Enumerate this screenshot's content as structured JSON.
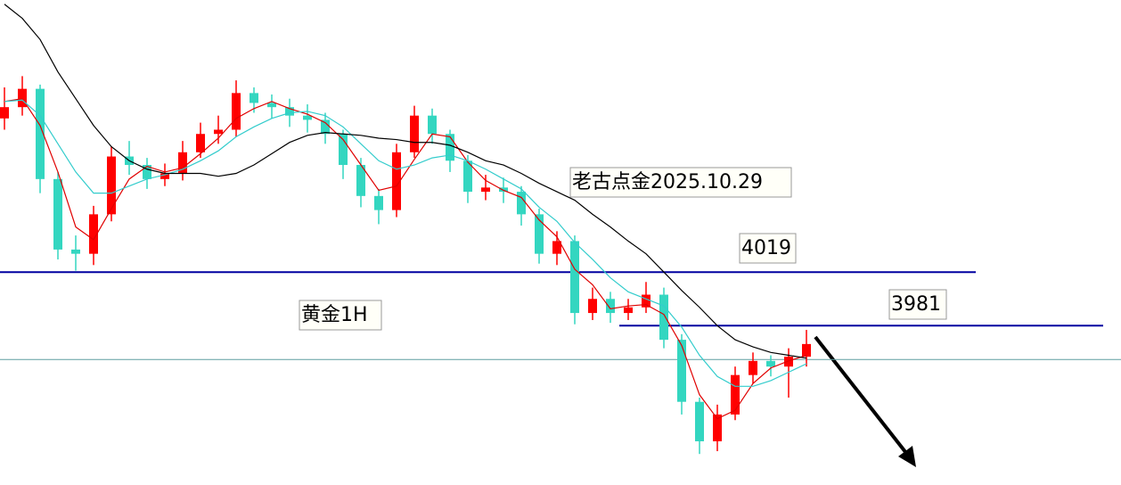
{
  "chart_data": {
    "type": "candlestick",
    "ylim": [
      3868,
      4212
    ],
    "up_color": "#ff0000",
    "down_color": "#33d6c0",
    "open": [
      4128,
      4136,
      4149,
      4085,
      4035,
      4032,
      4060,
      4101,
      4095,
      4085,
      4089,
      4104,
      4117,
      4120,
      4146,
      4139,
      4136,
      4130,
      4127,
      4117,
      4095,
      4073,
      4063,
      4104,
      4130,
      4117,
      4098,
      4076,
      4079,
      4076,
      4060,
      4032,
      4041,
      3990,
      4000,
      3990,
      3994,
      4003,
      3971,
      3927,
      3899,
      3918,
      3946,
      3956,
      3952,
      3959
    ],
    "high": [
      4150,
      4158,
      4152,
      4090,
      4045,
      4066,
      4108,
      4112,
      4100,
      4096,
      4112,
      4125,
      4130,
      4155,
      4150,
      4145,
      4142,
      4138,
      4132,
      4120,
      4100,
      4078,
      4110,
      4137,
      4135,
      4120,
      4102,
      4088,
      4086,
      4080,
      4064,
      4048,
      4045,
      4008,
      4005,
      4000,
      4012,
      4008,
      3975,
      3930,
      3925,
      3952,
      3962,
      3960,
      3965,
      3978
    ],
    "low": [
      4120,
      4130,
      4075,
      4028,
      4020,
      4024,
      4055,
      4088,
      4078,
      4080,
      4084,
      4100,
      4110,
      4115,
      4132,
      4128,
      4122,
      4118,
      4110,
      4085,
      4065,
      4053,
      4058,
      4100,
      4110,
      4090,
      4068,
      4070,
      4068,
      4052,
      4025,
      4024,
      3982,
      3985,
      3983,
      3985,
      3990,
      3965,
      3918,
      3890,
      3892,
      3914,
      3940,
      3945,
      3930,
      3952
    ],
    "close": [
      4136,
      4149,
      4085,
      4035,
      4032,
      4060,
      4101,
      4095,
      4085,
      4089,
      4104,
      4117,
      4120,
      4146,
      4139,
      4136,
      4130,
      4127,
      4117,
      4095,
      4073,
      4063,
      4104,
      4130,
      4117,
      4098,
      4076,
      4079,
      4076,
      4060,
      4032,
      4041,
      3990,
      4000,
      3990,
      3994,
      4003,
      3971,
      3927,
      3899,
      3918,
      3946,
      3956,
      3952,
      3959,
      3968
    ],
    "series": [
      {
        "color": "#e00000",
        "values": [
          4140,
          4142,
          4123,
          4090,
          4051,
          4042,
          4064,
          4085,
          4094,
          4090,
          4093,
          4103,
          4114,
          4128,
          4135,
          4140,
          4135,
          4131,
          4125,
          4113,
          4095,
          4077,
          4080,
          4099,
          4117,
          4115,
          4097,
          4084,
          4077,
          4072,
          4056,
          4044,
          4021,
          4010,
          3993,
          3995,
          3996,
          3989,
          3967,
          3932,
          3915,
          3921,
          3940,
          3951,
          3956,
          3960
        ]
      },
      {
        "color": "#33cccc",
        "values": [
          4140,
          4141,
          4130,
          4110,
          4090,
          4075,
          4075,
          4080,
          4085,
          4088,
          4092,
          4098,
          4105,
          4115,
          4122,
          4128,
          4132,
          4133,
          4130,
          4122,
          4110,
          4098,
          4092,
          4095,
          4100,
          4102,
          4098,
          4092,
          4085,
          4078,
          4065,
          4055,
          4040,
          4028,
          4015,
          4005,
          4000,
          3995,
          3980,
          3960,
          3945,
          3938,
          3938,
          3942,
          3948,
          3954
        ]
      },
      {
        "color": "#000000",
        "values": [
          4209,
          4199,
          4184,
          4161,
          4142,
          4123,
          4108,
          4098,
          4092,
          4089,
          4089,
          4089,
          4087,
          4089,
          4095,
          4103,
          4111,
          4116,
          4118,
          4117,
          4116,
          4114,
          4113,
          4111,
          4111,
          4109,
          4104,
          4098,
          4095,
          4089,
          4082,
          4076,
          4070,
          4060,
          4051,
          4041,
          4032,
          4019,
          4006,
          3994,
          3981,
          3971,
          3966,
          3962,
          3960,
          3958
        ]
      }
    ],
    "levels": [
      {
        "value": 4019,
        "color": "#0000a0"
      },
      {
        "value": 3981,
        "color": "#0000a0"
      }
    ],
    "price_line": {
      "value": 3957,
      "color": "#5f9ea0"
    },
    "annotations": [
      "老古点金2025.10.29",
      "黄金1H"
    ]
  }
}
